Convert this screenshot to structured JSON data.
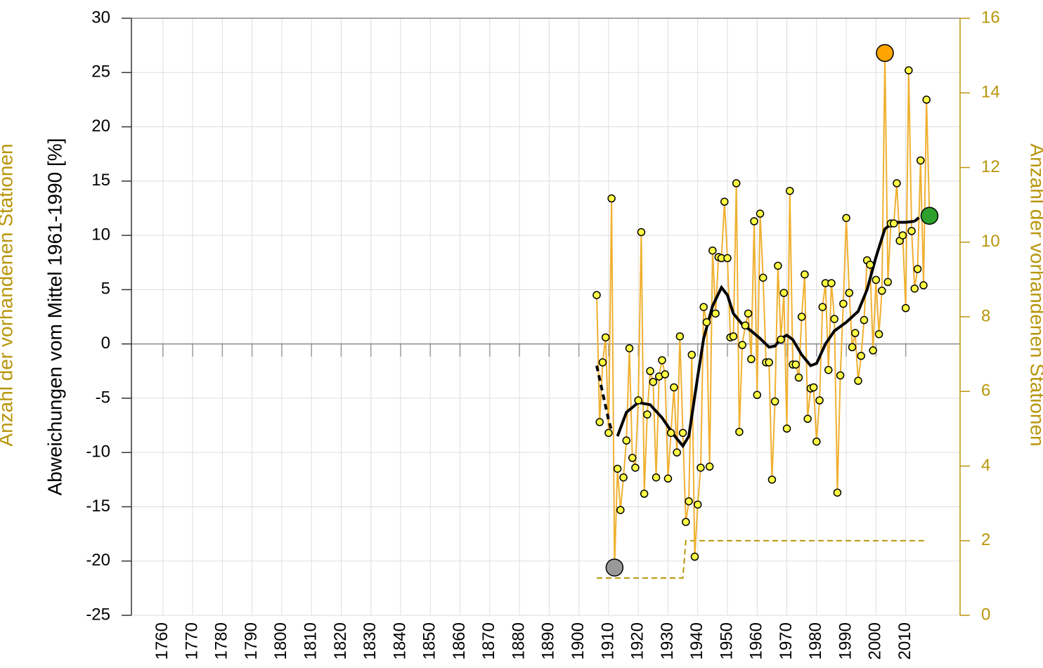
{
  "chart_data": {
    "type": "line",
    "ylabel": "Abweichungen vom Mittel 1961-1990 [%]",
    "y2label": "Anzahl der vorhandenen Stationen",
    "x": [
      1906,
      1907,
      1908,
      1909,
      1910,
      1911,
      1912,
      1913,
      1914,
      1915,
      1916,
      1917,
      1918,
      1919,
      1920,
      1921,
      1922,
      1923,
      1924,
      1925,
      1926,
      1927,
      1928,
      1929,
      1930,
      1931,
      1932,
      1933,
      1934,
      1935,
      1936,
      1937,
      1938,
      1939,
      1940,
      1941,
      1942,
      1943,
      1944,
      1945,
      1946,
      1947,
      1948,
      1949,
      1950,
      1951,
      1952,
      1953,
      1954,
      1955,
      1956,
      1957,
      1958,
      1959,
      1960,
      1961,
      1962,
      1963,
      1964,
      1965,
      1966,
      1967,
      1968,
      1969,
      1970,
      1971,
      1972,
      1973,
      1974,
      1975,
      1976,
      1977,
      1978,
      1979,
      1980,
      1981,
      1982,
      1983,
      1984,
      1985,
      1986,
      1987,
      1988,
      1989,
      1990,
      1991,
      1992,
      1993,
      1994,
      1995,
      1996,
      1997,
      1998,
      1999,
      2000,
      2001,
      2002,
      2003,
      2004,
      2005,
      2006,
      2007,
      2008,
      2009,
      2010,
      2011,
      2012,
      2013,
      2014,
      2015,
      2016,
      2017,
      2018
    ],
    "series": [
      {
        "color": "#f0b030",
        "marker_color": "#ffff44",
        "values": [
          4.5,
          -7.2,
          -1.7,
          0.6,
          -8.2,
          13.4,
          -20.6,
          -11.5,
          -15.3,
          -12.3,
          -8.9,
          -0.4,
          -10.5,
          -11.4,
          -5.2,
          10.3,
          -13.8,
          -6.5,
          -2.5,
          -3.5,
          -12.3,
          -3.0,
          -1.5,
          -2.8,
          -12.4,
          -8.2,
          -4.0,
          -10.0,
          0.7,
          -8.2,
          -16.4,
          -14.5,
          -1.0,
          -19.6,
          -14.8,
          -11.4,
          3.4,
          2.0,
          -11.3,
          8.6,
          2.8,
          8.0,
          7.9,
          13.1,
          7.9,
          0.6,
          0.7,
          14.8,
          -8.1,
          -0.1,
          1.7,
          2.8,
          -1.4,
          11.3,
          -4.7,
          12.0,
          6.1,
          -1.7,
          -1.7,
          -12.5,
          -5.3,
          7.2,
          0.4,
          4.7,
          -7.8,
          14.1,
          -1.9,
          -1.9,
          -3.1,
          2.5,
          6.4,
          -6.9,
          -4.1,
          -4.0,
          -9.0,
          -5.2,
          3.4,
          5.6,
          -2.4,
          5.6,
          2.3,
          -13.7,
          -2.9,
          3.7,
          11.6,
          4.7,
          -0.3,
          1.0,
          -3.4,
          -1.1,
          2.2,
          7.7,
          7.3,
          -0.6,
          5.9,
          0.9,
          4.9,
          26.8,
          5.7,
          11.1,
          11.1,
          14.8,
          9.5,
          10.0,
          3.3,
          25.2,
          10.4,
          5.1,
          6.9,
          16.9,
          5.4,
          22.5,
          11.8
        ]
      }
    ],
    "trend": [
      {
        "dashed": true,
        "color": "#000000",
        "x": [
          1906,
          1908,
          1910,
          1911
        ],
        "values": [
          -2.0,
          -4.5,
          -7.0,
          -8.0
        ]
      },
      {
        "dashed": false,
        "color": "#000000",
        "x": [
          1913,
          1916,
          1920,
          1924,
          1928,
          1932,
          1935,
          1937,
          1940,
          1942,
          1945,
          1948,
          1950,
          1952,
          1955,
          1958,
          1961,
          1964,
          1966,
          1968,
          1970,
          1972,
          1975,
          1978,
          1980,
          1983,
          1986,
          1990,
          1994,
          1997,
          2000,
          2003,
          2006,
          2010,
          2013
        ],
        "values": [
          -8.5,
          -6.3,
          -5.4,
          -5.6,
          -6.8,
          -8.4,
          -9.4,
          -8.5,
          -3.0,
          0.5,
          3.5,
          5.2,
          4.5,
          2.8,
          1.8,
          1.2,
          0.5,
          -0.3,
          -0.2,
          0.5,
          0.8,
          0.4,
          -1.0,
          -2.0,
          -1.8,
          0.0,
          1.2,
          2.0,
          3.0,
          5.0,
          8.0,
          10.6,
          11.2,
          11.2,
          11.3
        ]
      },
      {
        "dashed": true,
        "color": "#000000",
        "x": [
          2013,
          2016
        ],
        "values": [
          11.3,
          12.0
        ]
      }
    ],
    "stations": {
      "axis": "y2",
      "color": "#b8960c",
      "x": [
        1906,
        1935,
        1936,
        2017
      ],
      "values": [
        1,
        1,
        2,
        2
      ]
    },
    "max_color": "#ffa500",
    "min_color": "#999999",
    "last_color": "#2ca02c",
    "xlim": [
      1749.4,
      2028.3
    ],
    "xticks": [
      1760,
      1770,
      1780,
      1790,
      1800,
      1810,
      1820,
      1830,
      1840,
      1850,
      1860,
      1870,
      1880,
      1890,
      1900,
      1910,
      1920,
      1930,
      1940,
      1950,
      1960,
      1970,
      1980,
      1990,
      2000,
      2010
    ],
    "ylim": [
      -25,
      30
    ],
    "yticks": [
      -25,
      -20,
      -15,
      -10,
      -5,
      0,
      5,
      10,
      15,
      20,
      25,
      30
    ],
    "y2lim": [
      0,
      16
    ],
    "y2ticks": [
      0,
      2,
      4,
      6,
      8,
      10,
      12,
      14,
      16
    ],
    "grid": true
  }
}
